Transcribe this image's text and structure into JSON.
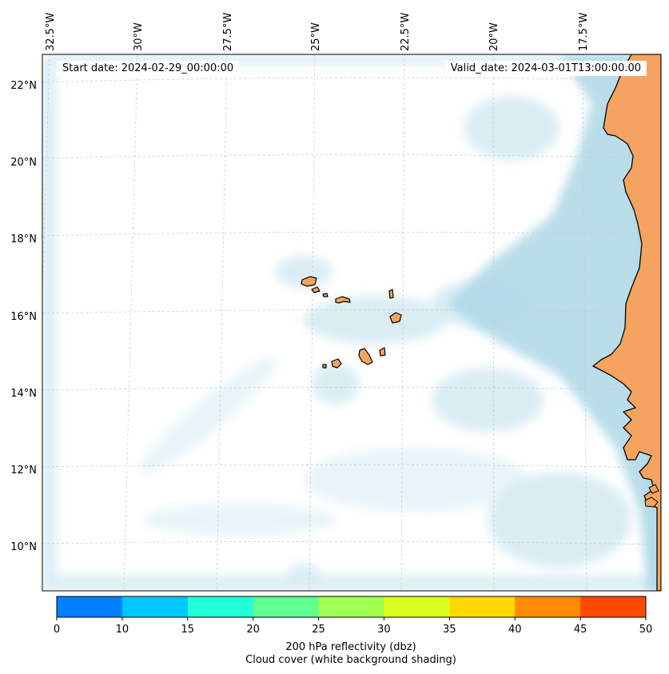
{
  "header": {
    "start_date": "Start date: 2024-02-29_00:00:00",
    "valid_date": "Valid_date: 2024-03-01T13:00:00.00"
  },
  "map": {
    "longitude_labels": [
      "32.5°W",
      "30°W",
      "27.5°W",
      "25°W",
      "22.5°W",
      "20°W",
      "17.5°W"
    ],
    "latitude_labels": [
      "22°N",
      "20°N",
      "18°N",
      "16°N",
      "14°N",
      "12°N",
      "10°N"
    ],
    "land_color": "#f4a460",
    "cloud_color": "#add8e6",
    "coastline_color": "#000000",
    "gridlines": true
  },
  "colorbar": {
    "ticks": [
      "0",
      "10",
      "15",
      "20",
      "25",
      "30",
      "35",
      "40",
      "45",
      "50"
    ],
    "colors": [
      "#0080ff",
      "#00c8ff",
      "#20ffd8",
      "#60ff90",
      "#a0ff50",
      "#d8ff20",
      "#ffd800",
      "#ff8c00",
      "#ff4800"
    ],
    "label_line1": "200 hPa reflectivity (dbz)",
    "label_line2": "Cloud cover (white background shading)"
  }
}
